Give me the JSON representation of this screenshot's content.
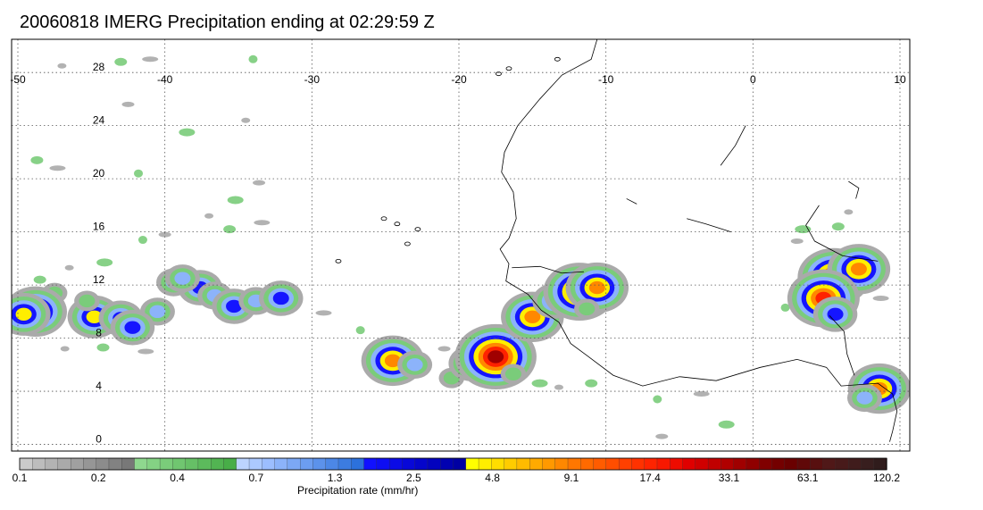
{
  "title": "20060818 IMERG Precipitation ending at 02:29:59 Z",
  "map": {
    "lon_range": [
      -50,
      10
    ],
    "lat_range": [
      -0.5,
      30.5
    ],
    "lon_ticks": [
      "-50",
      "-40",
      "-30",
      "-20",
      "-10",
      "0",
      "10"
    ],
    "lat_ticks": [
      "28",
      "24",
      "20",
      "16",
      "12",
      "8",
      "4",
      "0"
    ],
    "gridlines": true
  },
  "colorbar": {
    "label": "Precipitation rate (mm/hr)",
    "tick_labels": [
      "0.1",
      "0.2",
      "0.4",
      "0.7",
      "1.3",
      "2.5",
      "4.8",
      "9.1",
      "17.4",
      "33.1",
      "63.1",
      "120.2"
    ],
    "colors": [
      "#cacaca",
      "#bdbdbd",
      "#b3b3b3",
      "#aaaaaa",
      "#a0a0a0",
      "#969696",
      "#8c8c8c",
      "#828282",
      "#787878",
      "#8fd88f",
      "#84d284",
      "#7acc7a",
      "#70c670",
      "#66c066",
      "#5cba5c",
      "#52b452",
      "#48ae48",
      "#bcd4ff",
      "#acc9ff",
      "#9cbeff",
      "#8cb3fa",
      "#7ca8f5",
      "#6c9df0",
      "#5c92eb",
      "#4c87e6",
      "#3c7ce1",
      "#2c71dc",
      "#1111ff",
      "#0e0ef2",
      "#0b0be5",
      "#0808d8",
      "#0505cb",
      "#0303be",
      "#0101b0",
      "#0000a2",
      "#ffff00",
      "#ffee00",
      "#ffdd00",
      "#ffcc00",
      "#ffbb00",
      "#ffaa00",
      "#ff9900",
      "#ff8800",
      "#ff7700",
      "#ff6a00",
      "#ff5c00",
      "#ff4e00",
      "#ff4000",
      "#ff3200",
      "#ff2400",
      "#f81800",
      "#ee0c00",
      "#e00000",
      "#d00000",
      "#c00000",
      "#b00000",
      "#a00000",
      "#900000",
      "#800000",
      "#740000",
      "#6a0000",
      "#600808",
      "#581010",
      "#501818",
      "#481a1a",
      "#401c1c",
      "#381e1e",
      "#301c1c"
    ]
  },
  "legend_intensity_colors": {
    "light": "#aaaaaa",
    "green": "#7acc7a",
    "lightblue": "#8cb3fa",
    "blue": "#1515ff",
    "yellow": "#ffee00",
    "orange": "#ff8800",
    "red": "#ff2200",
    "darkred": "#a00000"
  },
  "precip_cells": [
    {
      "lon": -44.8,
      "lat": 9.6,
      "peak": 5
    },
    {
      "lon": -43.0,
      "lat": 9.5,
      "peak": 4
    },
    {
      "lon": -40.5,
      "lat": 10.0,
      "peak": 3
    },
    {
      "lon": -45.3,
      "lat": 10.8,
      "peak": 2
    },
    {
      "lon": -47.5,
      "lat": 11.4,
      "peak": 2
    },
    {
      "lon": -48.8,
      "lat": 10.0,
      "peak": 6
    },
    {
      "lon": -49.6,
      "lat": 9.8,
      "peak": 5
    },
    {
      "lon": -42.2,
      "lat": 8.8,
      "peak": 4
    },
    {
      "lon": -37.6,
      "lat": 11.8,
      "peak": 4
    },
    {
      "lon": -36.6,
      "lat": 11.2,
      "peak": 3
    },
    {
      "lon": -35.3,
      "lat": 10.4,
      "peak": 4
    },
    {
      "lon": -33.8,
      "lat": 10.8,
      "peak": 3
    },
    {
      "lon": -32.1,
      "lat": 11.0,
      "peak": 4
    },
    {
      "lon": -39.4,
      "lat": 12.2,
      "peak": 3
    },
    {
      "lon": -38.8,
      "lat": 12.5,
      "peak": 3
    },
    {
      "lon": -24.5,
      "lat": 6.3,
      "peak": 6
    },
    {
      "lon": -23.0,
      "lat": 6.0,
      "peak": 3
    },
    {
      "lon": -20.5,
      "lat": 5.0,
      "peak": 2
    },
    {
      "lon": -19.2,
      "lat": 6.1,
      "peak": 4
    },
    {
      "lon": -17.5,
      "lat": 6.6,
      "peak": 8
    },
    {
      "lon": -16.3,
      "lat": 5.3,
      "peak": 2
    },
    {
      "lon": -15.0,
      "lat": 9.6,
      "peak": 6
    },
    {
      "lon": -13.5,
      "lat": 10.8,
      "peak": 4
    },
    {
      "lon": -11.8,
      "lat": 11.5,
      "peak": 7
    },
    {
      "lon": -10.6,
      "lat": 11.8,
      "peak": 6
    },
    {
      "lon": -11.3,
      "lat": 10.2,
      "peak": 2
    },
    {
      "lon": 5.5,
      "lat": 12.6,
      "peak": 7
    },
    {
      "lon": 7.2,
      "lat": 13.2,
      "peak": 6
    },
    {
      "lon": 4.8,
      "lat": 11.0,
      "peak": 7
    },
    {
      "lon": 5.6,
      "lat": 9.8,
      "peak": 4
    },
    {
      "lon": 8.6,
      "lat": 4.2,
      "peak": 6
    },
    {
      "lon": 7.6,
      "lat": 3.5,
      "peak": 3
    }
  ],
  "light_precip": [
    {
      "lon": -47,
      "lat": 28.5
    },
    {
      "lon": -43,
      "lat": 28.8
    },
    {
      "lon": -41,
      "lat": 29.0
    },
    {
      "lon": -34,
      "lat": 29.0
    },
    {
      "lon": -42.5,
      "lat": 25.6
    },
    {
      "lon": -38.5,
      "lat": 23.5
    },
    {
      "lon": -34.5,
      "lat": 24.4
    },
    {
      "lon": -48.7,
      "lat": 21.4
    },
    {
      "lon": -47.3,
      "lat": 20.8
    },
    {
      "lon": -41.8,
      "lat": 20.4
    },
    {
      "lon": -33.6,
      "lat": 19.7
    },
    {
      "lon": -35.2,
      "lat": 18.4
    },
    {
      "lon": -37.0,
      "lat": 17.2
    },
    {
      "lon": -35.6,
      "lat": 16.2
    },
    {
      "lon": -33.4,
      "lat": 16.7
    },
    {
      "lon": -41.5,
      "lat": 15.4
    },
    {
      "lon": -40.0,
      "lat": 15.8
    },
    {
      "lon": -44.1,
      "lat": 13.7
    },
    {
      "lon": -46.5,
      "lat": 13.3
    },
    {
      "lon": -48.5,
      "lat": 12.4
    },
    {
      "lon": -29.2,
      "lat": 9.9
    },
    {
      "lon": -26.7,
      "lat": 8.6
    },
    {
      "lon": -21.0,
      "lat": 7.2
    },
    {
      "lon": -14.5,
      "lat": 4.6
    },
    {
      "lon": -13.2,
      "lat": 4.3
    },
    {
      "lon": -11.0,
      "lat": 4.6
    },
    {
      "lon": -3.5,
      "lat": 3.8
    },
    {
      "lon": -6.5,
      "lat": 3.4
    },
    {
      "lon": 3.0,
      "lat": 15.3
    },
    {
      "lon": 3.4,
      "lat": 16.2
    },
    {
      "lon": 6.5,
      "lat": 17.5
    },
    {
      "lon": 5.8,
      "lat": 16.4
    },
    {
      "lon": 8.7,
      "lat": 11.0
    },
    {
      "lon": 2.2,
      "lat": 10.3
    },
    {
      "lon": -6.2,
      "lat": 0.6
    },
    {
      "lon": -1.8,
      "lat": 1.5
    },
    {
      "lon": -46.8,
      "lat": 7.2
    },
    {
      "lon": -44.2,
      "lat": 7.3
    },
    {
      "lon": -41.3,
      "lat": 7.0
    }
  ]
}
